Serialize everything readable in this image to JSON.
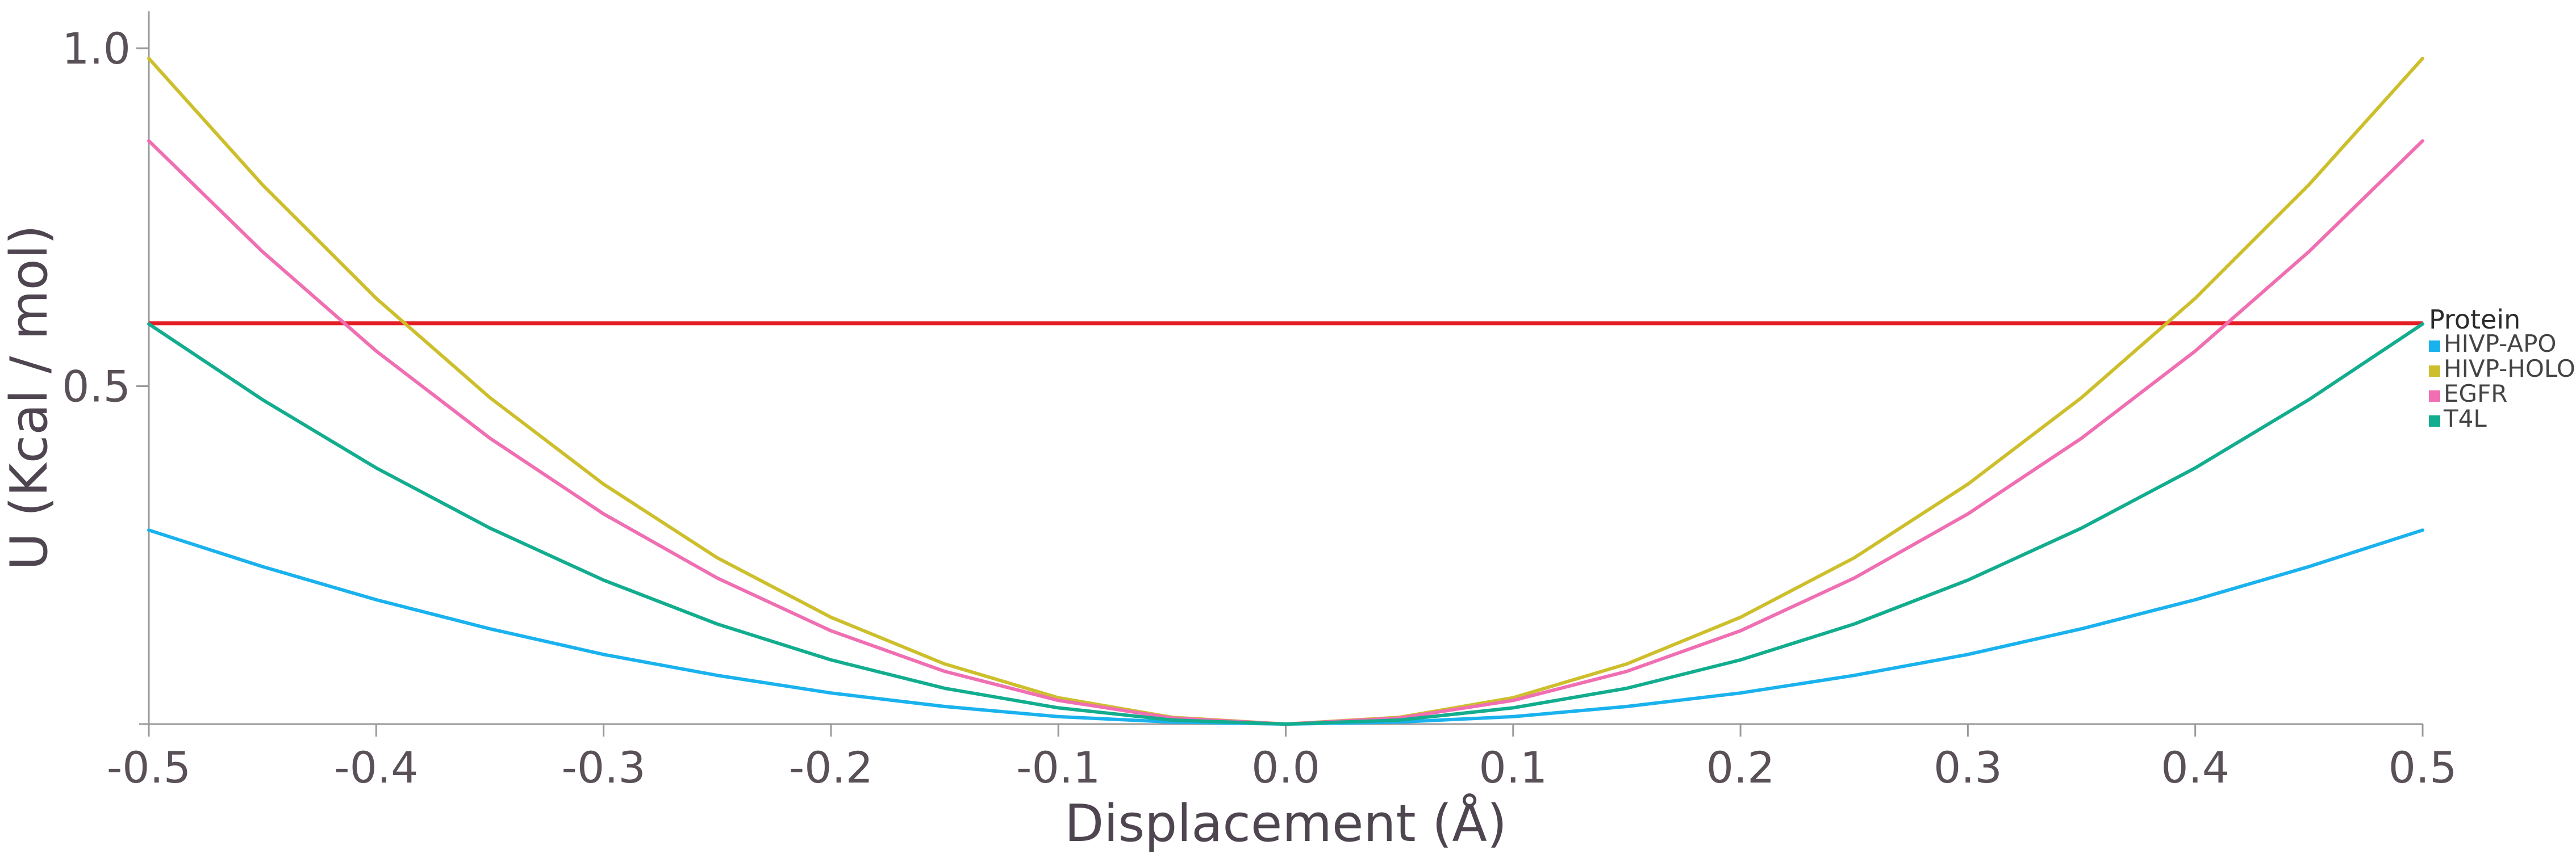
{
  "chart_data": {
    "type": "line",
    "title": "",
    "xlabel": "Displacement (Å)",
    "ylabel": "U (Kcal / mol)",
    "xlim": [
      -0.5,
      0.5
    ],
    "ylim": [
      0.0,
      1.05
    ],
    "xticks": [
      "-0.5",
      "-0.4",
      "-0.3",
      "-0.2",
      "-0.1",
      "0.0",
      "0.1",
      "0.2",
      "0.3",
      "0.4",
      "0.5"
    ],
    "xtick_values": [
      -0.5,
      -0.4,
      -0.3,
      -0.2,
      -0.1,
      0.0,
      0.1,
      0.2,
      0.3,
      0.4,
      0.5
    ],
    "yticks": [
      "0.5",
      "1.0"
    ],
    "ytick_values": [
      0.5,
      1.0
    ],
    "x": [
      -0.5,
      -0.45,
      -0.4,
      -0.35,
      -0.3,
      -0.25,
      -0.2,
      -0.15,
      -0.1,
      -0.05,
      0.0,
      0.05,
      0.1,
      0.15,
      0.2,
      0.25,
      0.3,
      0.35,
      0.4,
      0.45,
      0.5
    ],
    "series": [
      {
        "name": "HIVP-APO",
        "color": "#1ab2ee",
        "values": [
          0.287,
          0.233,
          0.184,
          0.141,
          0.103,
          0.072,
          0.046,
          0.026,
          0.011,
          0.003,
          0.0,
          0.003,
          0.011,
          0.026,
          0.046,
          0.072,
          0.103,
          0.141,
          0.184,
          0.233,
          0.287
        ]
      },
      {
        "name": "HIVP-HOLO",
        "color": "#cdbf2c",
        "values": [
          0.985,
          0.798,
          0.63,
          0.483,
          0.355,
          0.246,
          0.158,
          0.089,
          0.039,
          0.01,
          0.0,
          0.01,
          0.039,
          0.089,
          0.158,
          0.246,
          0.355,
          0.483,
          0.63,
          0.798,
          0.985
        ]
      },
      {
        "name": "EGFR",
        "color": "#f06eb2",
        "values": [
          0.863,
          0.699,
          0.552,
          0.423,
          0.311,
          0.216,
          0.138,
          0.078,
          0.035,
          0.009,
          0.0,
          0.009,
          0.035,
          0.078,
          0.138,
          0.216,
          0.311,
          0.423,
          0.552,
          0.699,
          0.863
        ]
      },
      {
        "name": "T4L",
        "color": "#12ad8e",
        "values": [
          0.592,
          0.48,
          0.379,
          0.29,
          0.213,
          0.148,
          0.095,
          0.053,
          0.024,
          0.006,
          0.0,
          0.006,
          0.024,
          0.053,
          0.095,
          0.148,
          0.213,
          0.29,
          0.379,
          0.48,
          0.592
        ]
      }
    ],
    "reference_line": {
      "y": 0.593,
      "color": "#e41e26"
    },
    "legend": {
      "title": "Protein",
      "placement": "right",
      "entries": [
        "HIVP-APO",
        "HIVP-HOLO",
        "EGFR",
        "T4L"
      ]
    },
    "grid": false
  }
}
